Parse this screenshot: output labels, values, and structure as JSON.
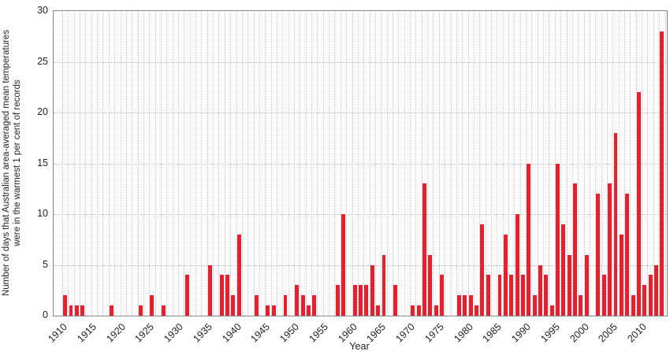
{
  "axis": {
    "y_title_line1": "Number of days that Australian area-averaged mean temperatures",
    "y_title_line2": "were in the warmest 1 per cent of records",
    "x_title": "Year"
  },
  "colors": {
    "bar": "#e8202e",
    "frame": "#85878a",
    "grid": "#c3c4c6",
    "text": "#231f20",
    "background": "#ffffff"
  },
  "chart_data": {
    "type": "bar",
    "title": "",
    "xlabel": "Year",
    "ylabel": "Number of days that Australian area-averaged mean temperatures were in the warmest 1 per cent of records",
    "xlim": [
      1908.5,
      2014.5
    ],
    "ylim": [
      0,
      30
    ],
    "yticks": [
      0,
      5,
      10,
      15,
      20,
      25,
      30
    ],
    "xticks": [
      1910,
      1915,
      1920,
      1925,
      1930,
      1935,
      1940,
      1945,
      1950,
      1955,
      1960,
      1965,
      1970,
      1975,
      1980,
      1985,
      1990,
      1995,
      2000,
      2005,
      2010
    ],
    "grid": "dotted, vertical line each year and horizontal line each 5 units",
    "legend": "none",
    "x": [
      1910,
      1911,
      1912,
      1913,
      1914,
      1915,
      1916,
      1917,
      1918,
      1919,
      1920,
      1921,
      1922,
      1923,
      1924,
      1925,
      1926,
      1927,
      1928,
      1929,
      1930,
      1931,
      1932,
      1933,
      1934,
      1935,
      1936,
      1937,
      1938,
      1939,
      1940,
      1941,
      1942,
      1943,
      1944,
      1945,
      1946,
      1947,
      1948,
      1949,
      1950,
      1951,
      1952,
      1953,
      1954,
      1955,
      1956,
      1957,
      1958,
      1959,
      1960,
      1961,
      1962,
      1963,
      1964,
      1965,
      1966,
      1967,
      1968,
      1969,
      1970,
      1971,
      1972,
      1973,
      1974,
      1975,
      1976,
      1977,
      1978,
      1979,
      1980,
      1981,
      1982,
      1983,
      1984,
      1985,
      1986,
      1987,
      1988,
      1989,
      1990,
      1991,
      1992,
      1993,
      1994,
      1995,
      1996,
      1997,
      1998,
      1999,
      2000,
      2001,
      2002,
      2003,
      2004,
      2005,
      2006,
      2007,
      2008,
      2009,
      2010,
      2011,
      2012,
      2013
    ],
    "values": [
      2,
      1,
      1,
      1,
      0,
      0,
      0,
      0,
      1,
      0,
      0,
      0,
      0,
      1,
      0,
      2,
      0,
      1,
      0,
      0,
      0,
      4,
      0,
      0,
      0,
      5,
      0,
      4,
      4,
      2,
      8,
      0,
      0,
      2,
      0,
      1,
      1,
      0,
      2,
      0,
      3,
      2,
      1,
      2,
      0,
      0,
      0,
      3,
      10,
      0,
      3,
      3,
      3,
      5,
      1,
      6,
      0,
      3,
      0,
      0,
      1,
      1,
      13,
      6,
      1,
      4,
      0,
      0,
      2,
      2,
      2,
      1,
      9,
      4,
      0,
      4,
      8,
      4,
      10,
      4,
      15,
      2,
      5,
      4,
      1,
      15,
      9,
      6,
      13,
      2,
      6,
      0,
      12,
      4,
      13,
      18,
      8,
      12,
      2,
      22,
      3,
      4,
      5,
      28
    ]
  }
}
